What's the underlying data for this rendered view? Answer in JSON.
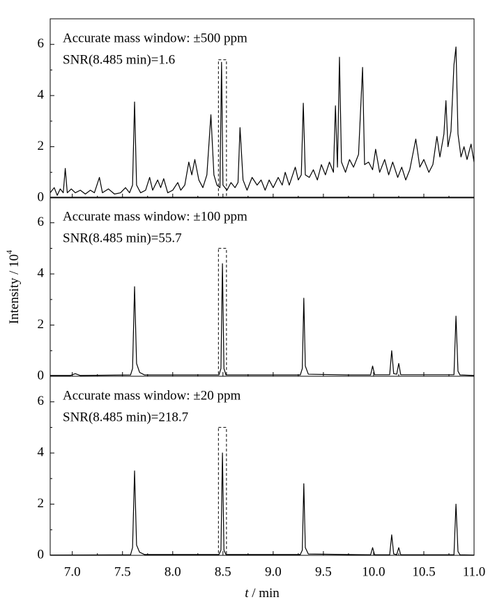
{
  "chart_data": [
    {
      "type": "line",
      "title": "Accurate mass window: ±500 ppm",
      "subtitle": "SNR(8.485 min)=1.6",
      "color": "#000000",
      "x": [
        6.78,
        6.82,
        6.85,
        6.88,
        6.91,
        6.93,
        6.95,
        6.99,
        7.03,
        7.08,
        7.13,
        7.18,
        7.22,
        7.27,
        7.3,
        7.36,
        7.42,
        7.48,
        7.53,
        7.57,
        7.6,
        7.62,
        7.64,
        7.68,
        7.73,
        7.77,
        7.8,
        7.85,
        7.88,
        7.91,
        7.95,
        8.0,
        8.05,
        8.08,
        8.12,
        8.16,
        8.19,
        8.22,
        8.26,
        8.3,
        8.34,
        8.38,
        8.41,
        8.44,
        8.47,
        8.486,
        8.5,
        8.54,
        8.58,
        8.62,
        8.65,
        8.67,
        8.7,
        8.74,
        8.79,
        8.84,
        8.88,
        8.92,
        8.96,
        9.0,
        9.05,
        9.09,
        9.12,
        9.16,
        9.22,
        9.25,
        9.28,
        9.3,
        9.32,
        9.36,
        9.4,
        9.44,
        9.48,
        9.52,
        9.56,
        9.6,
        9.62,
        9.64,
        9.66,
        9.68,
        9.72,
        9.76,
        9.8,
        9.85,
        9.89,
        9.91,
        9.95,
        9.99,
        10.02,
        10.06,
        10.11,
        10.15,
        10.19,
        10.24,
        10.28,
        10.32,
        10.36,
        10.42,
        10.46,
        10.5,
        10.55,
        10.59,
        10.63,
        10.66,
        10.7,
        10.72,
        10.74,
        10.77,
        10.8,
        10.82,
        10.84,
        10.87,
        10.9,
        10.93,
        10.97,
        11.0
      ],
      "values": [
        0.2,
        0.4,
        0.1,
        0.35,
        0.2,
        1.15,
        0.2,
        0.35,
        0.2,
        0.3,
        0.15,
        0.3,
        0.2,
        0.8,
        0.2,
        0.35,
        0.15,
        0.2,
        0.4,
        0.2,
        0.5,
        3.75,
        0.5,
        0.2,
        0.3,
        0.8,
        0.3,
        0.7,
        0.4,
        0.75,
        0.2,
        0.3,
        0.6,
        0.3,
        0.5,
        1.4,
        0.9,
        1.5,
        0.7,
        0.4,
        0.9,
        3.25,
        0.9,
        0.5,
        0.4,
        5.3,
        0.5,
        0.3,
        0.6,
        0.4,
        0.6,
        2.75,
        0.7,
        0.3,
        0.8,
        0.5,
        0.7,
        0.3,
        0.7,
        0.4,
        0.8,
        0.5,
        1.0,
        0.5,
        1.2,
        0.7,
        0.9,
        3.7,
        0.9,
        0.8,
        1.1,
        0.7,
        1.3,
        0.9,
        1.4,
        1.0,
        3.6,
        1.2,
        5.5,
        1.4,
        1.0,
        1.5,
        1.2,
        1.7,
        5.1,
        1.3,
        1.4,
        1.1,
        1.9,
        1.0,
        1.5,
        0.9,
        1.4,
        0.8,
        1.2,
        0.7,
        1.1,
        2.3,
        1.2,
        1.5,
        1.0,
        1.3,
        2.4,
        1.6,
        2.5,
        3.8,
        2.0,
        2.6,
        5.2,
        5.9,
        2.5,
        1.6,
        2.0,
        1.5,
        2.1,
        1.4
      ],
      "xlim": [
        6.78,
        11.0
      ],
      "ylim": [
        0,
        7
      ],
      "yticks": [
        0,
        2,
        4,
        6
      ],
      "yminor_ticks": [
        1,
        3,
        5
      ],
      "highlight_box": {
        "xlim": [
          8.455,
          8.535
        ],
        "ylim": [
          0,
          5.4
        ]
      }
    },
    {
      "type": "line",
      "title": "Accurate mass window: ±100 ppm",
      "subtitle": "SNR(8.485 min)=55.7",
      "color": "#000000",
      "y_label": "Intensity / 10",
      "y_label_exponent": "4",
      "x": [
        6.78,
        6.98,
        7.03,
        7.08,
        7.58,
        7.6,
        7.62,
        7.64,
        7.67,
        7.72,
        8.46,
        8.48,
        8.495,
        8.51,
        8.53,
        9.27,
        9.29,
        9.305,
        9.32,
        9.35,
        9.75,
        9.97,
        9.99,
        10.01,
        10.16,
        10.18,
        10.2,
        10.23,
        10.25,
        10.27,
        10.8,
        10.82,
        10.84,
        10.86,
        11.0
      ],
      "values": [
        0.03,
        0.03,
        0.1,
        0.03,
        0.05,
        0.3,
        3.5,
        0.5,
        0.15,
        0.05,
        0.05,
        0.3,
        4.4,
        0.3,
        0.05,
        0.05,
        0.3,
        3.05,
        0.4,
        0.08,
        0.05,
        0.05,
        0.4,
        0.06,
        0.06,
        1.0,
        0.1,
        0.08,
        0.5,
        0.06,
        0.06,
        2.35,
        0.2,
        0.05,
        0.03
      ],
      "xlim": [
        6.78,
        11.0
      ],
      "ylim": [
        0,
        7
      ],
      "yticks": [
        0,
        2,
        4,
        6
      ],
      "yminor_ticks": [
        1,
        3,
        5
      ],
      "highlight_box": {
        "xlim": [
          8.455,
          8.535
        ],
        "ylim": [
          0,
          5.0
        ]
      }
    },
    {
      "type": "line",
      "title": "Accurate mass window: ±20 ppm",
      "subtitle": "SNR(8.485 min)=218.7",
      "color": "#000000",
      "x_label_var": "t",
      "x_label_unit": " / min",
      "x": [
        6.78,
        7.58,
        7.6,
        7.62,
        7.64,
        7.67,
        7.72,
        8.46,
        8.48,
        8.495,
        8.51,
        8.53,
        9.27,
        9.29,
        9.305,
        9.32,
        9.35,
        9.97,
        9.99,
        10.01,
        10.16,
        10.18,
        10.2,
        10.23,
        10.25,
        10.27,
        10.8,
        10.82,
        10.84,
        10.86,
        11.0
      ],
      "values": [
        0.01,
        0.02,
        0.3,
        3.3,
        0.4,
        0.12,
        0.03,
        0.03,
        0.2,
        4.0,
        0.2,
        0.03,
        0.03,
        0.2,
        2.8,
        0.3,
        0.05,
        0.02,
        0.3,
        0.02,
        0.02,
        0.8,
        0.05,
        0.03,
        0.3,
        0.02,
        0.02,
        2.0,
        0.15,
        0.02,
        0.01
      ],
      "xlim": [
        6.78,
        11.0
      ],
      "ylim": [
        0,
        7
      ],
      "yticks": [
        0,
        2,
        4,
        6
      ],
      "yminor_ticks": [
        1,
        3,
        5
      ],
      "xticks": [
        {
          "value": 7,
          "label": "7.0"
        },
        7.5,
        {
          "value": 8,
          "label": "8.0"
        },
        8.5,
        {
          "value": 9,
          "label": "9.0"
        },
        9.5,
        {
          "value": 10,
          "label": "10.0"
        },
        10.5,
        {
          "value": 11,
          "label": "11.0"
        }
      ],
      "xminor_ticks": [
        7.25,
        7.75,
        8.25,
        8.75,
        9.25,
        9.75,
        10.25,
        10.75
      ],
      "highlight_box": {
        "xlim": [
          8.455,
          8.535
        ],
        "ylim": [
          0,
          5.0
        ]
      }
    }
  ]
}
